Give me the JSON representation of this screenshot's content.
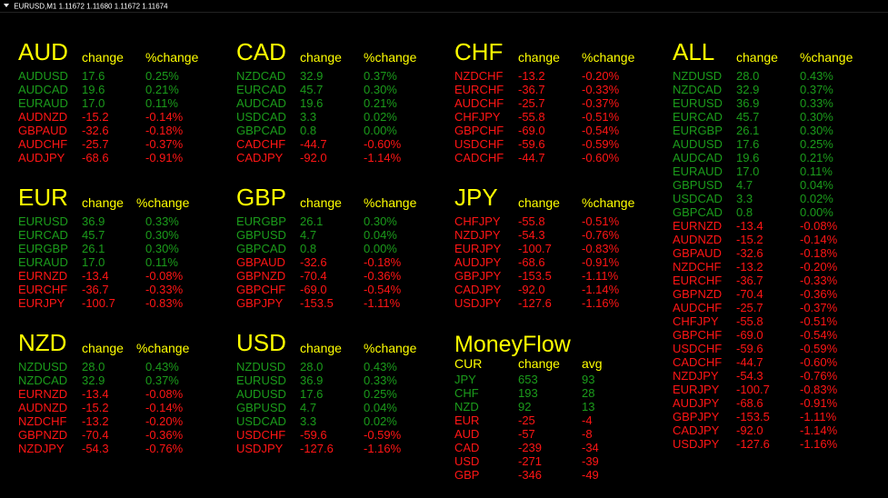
{
  "title_bar": {
    "symbol": "EURUSD,M1",
    "prices": "1.11672 1.11680 1.11672 1.11674"
  },
  "colors": {
    "background": "#000000",
    "heading": "#ffff00",
    "positive": "#1b9c1b",
    "negative": "#ff1515"
  },
  "headers": {
    "change": "change",
    "pct_change": "%change"
  },
  "panels": [
    {
      "currency": "AUD",
      "rows": [
        {
          "pair": "AUDUSD",
          "change": "17.6",
          "pct": "0.25%",
          "up": true
        },
        {
          "pair": "AUDCAD",
          "change": "19.6",
          "pct": "0.21%",
          "up": true
        },
        {
          "pair": "EURAUD",
          "change": "17.0",
          "pct": "0.11%",
          "up": true
        },
        {
          "pair": "AUDNZD",
          "change": "-15.2",
          "pct": "-0.14%",
          "up": false
        },
        {
          "pair": "GBPAUD",
          "change": "-32.6",
          "pct": "-0.18%",
          "up": false
        },
        {
          "pair": "AUDCHF",
          "change": "-25.7",
          "pct": "-0.37%",
          "up": false
        },
        {
          "pair": "AUDJPY",
          "change": "-68.6",
          "pct": "-0.91%",
          "up": false
        }
      ]
    },
    {
      "currency": "CAD",
      "rows": [
        {
          "pair": "NZDCAD",
          "change": "32.9",
          "pct": "0.37%",
          "up": true
        },
        {
          "pair": "EURCAD",
          "change": "45.7",
          "pct": "0.30%",
          "up": true
        },
        {
          "pair": "AUDCAD",
          "change": "19.6",
          "pct": "0.21%",
          "up": true
        },
        {
          "pair": "USDCAD",
          "change": "3.3",
          "pct": "0.02%",
          "up": true
        },
        {
          "pair": "GBPCAD",
          "change": "0.8",
          "pct": "0.00%",
          "up": true
        },
        {
          "pair": "CADCHF",
          "change": "-44.7",
          "pct": "-0.60%",
          "up": false
        },
        {
          "pair": "CADJPY",
          "change": "-92.0",
          "pct": "-1.14%",
          "up": false
        }
      ]
    },
    {
      "currency": "CHF",
      "rows": [
        {
          "pair": "NZDCHF",
          "change": "-13.2",
          "pct": "-0.20%",
          "up": false
        },
        {
          "pair": "EURCHF",
          "change": "-36.7",
          "pct": "-0.33%",
          "up": false
        },
        {
          "pair": "AUDCHF",
          "change": "-25.7",
          "pct": "-0.37%",
          "up": false
        },
        {
          "pair": "CHFJPY",
          "change": "-55.8",
          "pct": "-0.51%",
          "up": false
        },
        {
          "pair": "GBPCHF",
          "change": "-69.0",
          "pct": "-0.54%",
          "up": false
        },
        {
          "pair": "USDCHF",
          "change": "-59.6",
          "pct": "-0.59%",
          "up": false
        },
        {
          "pair": "CADCHF",
          "change": "-44.7",
          "pct": "-0.60%",
          "up": false
        }
      ]
    },
    {
      "currency": "EUR",
      "rows": [
        {
          "pair": "EURUSD",
          "change": "36.9",
          "pct": "0.33%",
          "up": true
        },
        {
          "pair": "EURCAD",
          "change": "45.7",
          "pct": "0.30%",
          "up": true
        },
        {
          "pair": "EURGBP",
          "change": "26.1",
          "pct": "0.30%",
          "up": true
        },
        {
          "pair": "EURAUD",
          "change": "17.0",
          "pct": "0.11%",
          "up": true
        },
        {
          "pair": "EURNZD",
          "change": "-13.4",
          "pct": "-0.08%",
          "up": false
        },
        {
          "pair": "EURCHF",
          "change": "-36.7",
          "pct": "-0.33%",
          "up": false
        },
        {
          "pair": "EURJPY",
          "change": "-100.7",
          "pct": "-0.83%",
          "up": false
        }
      ]
    },
    {
      "currency": "GBP",
      "rows": [
        {
          "pair": "EURGBP",
          "change": "26.1",
          "pct": "0.30%",
          "up": true
        },
        {
          "pair": "GBPUSD",
          "change": "4.7",
          "pct": "0.04%",
          "up": true
        },
        {
          "pair": "GBPCAD",
          "change": "0.8",
          "pct": "0.00%",
          "up": true
        },
        {
          "pair": "GBPAUD",
          "change": "-32.6",
          "pct": "-0.18%",
          "up": false
        },
        {
          "pair": "GBPNZD",
          "change": "-70.4",
          "pct": "-0.36%",
          "up": false
        },
        {
          "pair": "GBPCHF",
          "change": "-69.0",
          "pct": "-0.54%",
          "up": false
        },
        {
          "pair": "GBPJPY",
          "change": "-153.5",
          "pct": "-1.11%",
          "up": false
        }
      ]
    },
    {
      "currency": "JPY",
      "rows": [
        {
          "pair": "CHFJPY",
          "change": "-55.8",
          "pct": "-0.51%",
          "up": false
        },
        {
          "pair": "NZDJPY",
          "change": "-54.3",
          "pct": "-0.76%",
          "up": false
        },
        {
          "pair": "EURJPY",
          "change": "-100.7",
          "pct": "-0.83%",
          "up": false
        },
        {
          "pair": "AUDJPY",
          "change": "-68.6",
          "pct": "-0.91%",
          "up": false
        },
        {
          "pair": "GBPJPY",
          "change": "-153.5",
          "pct": "-1.11%",
          "up": false
        },
        {
          "pair": "CADJPY",
          "change": "-92.0",
          "pct": "-1.14%",
          "up": false
        },
        {
          "pair": "USDJPY",
          "change": "-127.6",
          "pct": "-1.16%",
          "up": false
        }
      ]
    },
    {
      "currency": "NZD",
      "rows": [
        {
          "pair": "NZDUSD",
          "change": "28.0",
          "pct": "0.43%",
          "up": true
        },
        {
          "pair": "NZDCAD",
          "change": "32.9",
          "pct": "0.37%",
          "up": true
        },
        {
          "pair": "EURNZD",
          "change": "-13.4",
          "pct": "-0.08%",
          "up": false
        },
        {
          "pair": "AUDNZD",
          "change": "-15.2",
          "pct": "-0.14%",
          "up": false
        },
        {
          "pair": "NZDCHF",
          "change": "-13.2",
          "pct": "-0.20%",
          "up": false
        },
        {
          "pair": "GBPNZD",
          "change": "-70.4",
          "pct": "-0.36%",
          "up": false
        },
        {
          "pair": "NZDJPY",
          "change": "-54.3",
          "pct": "-0.76%",
          "up": false
        }
      ]
    },
    {
      "currency": "USD",
      "rows": [
        {
          "pair": "NZDUSD",
          "change": "28.0",
          "pct": "0.43%",
          "up": true
        },
        {
          "pair": "EURUSD",
          "change": "36.9",
          "pct": "0.33%",
          "up": true
        },
        {
          "pair": "AUDUSD",
          "change": "17.6",
          "pct": "0.25%",
          "up": true
        },
        {
          "pair": "GBPUSD",
          "change": "4.7",
          "pct": "0.04%",
          "up": true
        },
        {
          "pair": "USDCAD",
          "change": "3.3",
          "pct": "0.02%",
          "up": true
        },
        {
          "pair": "USDCHF",
          "change": "-59.6",
          "pct": "-0.59%",
          "up": false
        },
        {
          "pair": "USDJPY",
          "change": "-127.6",
          "pct": "-1.16%",
          "up": false
        }
      ]
    },
    {
      "currency": "ALL",
      "rows": [
        {
          "pair": "NZDUSD",
          "change": "28.0",
          "pct": "0.43%",
          "up": true
        },
        {
          "pair": "NZDCAD",
          "change": "32.9",
          "pct": "0.37%",
          "up": true
        },
        {
          "pair": "EURUSD",
          "change": "36.9",
          "pct": "0.33%",
          "up": true
        },
        {
          "pair": "EURCAD",
          "change": "45.7",
          "pct": "0.30%",
          "up": true
        },
        {
          "pair": "EURGBP",
          "change": "26.1",
          "pct": "0.30%",
          "up": true
        },
        {
          "pair": "AUDUSD",
          "change": "17.6",
          "pct": "0.25%",
          "up": true
        },
        {
          "pair": "AUDCAD",
          "change": "19.6",
          "pct": "0.21%",
          "up": true
        },
        {
          "pair": "EURAUD",
          "change": "17.0",
          "pct": "0.11%",
          "up": true
        },
        {
          "pair": "GBPUSD",
          "change": "4.7",
          "pct": "0.04%",
          "up": true
        },
        {
          "pair": "USDCAD",
          "change": "3.3",
          "pct": "0.02%",
          "up": true
        },
        {
          "pair": "GBPCAD",
          "change": "0.8",
          "pct": "0.00%",
          "up": true
        },
        {
          "pair": "EURNZD",
          "change": "-13.4",
          "pct": "-0.08%",
          "up": false
        },
        {
          "pair": "AUDNZD",
          "change": "-15.2",
          "pct": "-0.14%",
          "up": false
        },
        {
          "pair": "GBPAUD",
          "change": "-32.6",
          "pct": "-0.18%",
          "up": false
        },
        {
          "pair": "NZDCHF",
          "change": "-13.2",
          "pct": "-0.20%",
          "up": false
        },
        {
          "pair": "EURCHF",
          "change": "-36.7",
          "pct": "-0.33%",
          "up": false
        },
        {
          "pair": "GBPNZD",
          "change": "-70.4",
          "pct": "-0.36%",
          "up": false
        },
        {
          "pair": "AUDCHF",
          "change": "-25.7",
          "pct": "-0.37%",
          "up": false
        },
        {
          "pair": "CHFJPY",
          "change": "-55.8",
          "pct": "-0.51%",
          "up": false
        },
        {
          "pair": "GBPCHF",
          "change": "-69.0",
          "pct": "-0.54%",
          "up": false
        },
        {
          "pair": "USDCHF",
          "change": "-59.6",
          "pct": "-0.59%",
          "up": false
        },
        {
          "pair": "CADCHF",
          "change": "-44.7",
          "pct": "-0.60%",
          "up": false
        },
        {
          "pair": "NZDJPY",
          "change": "-54.3",
          "pct": "-0.76%",
          "up": false
        },
        {
          "pair": "EURJPY",
          "change": "-100.7",
          "pct": "-0.83%",
          "up": false
        },
        {
          "pair": "AUDJPY",
          "change": "-68.6",
          "pct": "-0.91%",
          "up": false
        },
        {
          "pair": "GBPJPY",
          "change": "-153.5",
          "pct": "-1.11%",
          "up": false
        },
        {
          "pair": "CADJPY",
          "change": "-92.0",
          "pct": "-1.14%",
          "up": false
        },
        {
          "pair": "USDJPY",
          "change": "-127.6",
          "pct": "-1.16%",
          "up": false
        }
      ]
    }
  ],
  "moneyflow": {
    "title": "MoneyFlow",
    "headers": {
      "cur": "CUR",
      "change": "change",
      "avg": "avg"
    },
    "rows": [
      {
        "cur": "JPY",
        "change": "653",
        "avg": "93",
        "up": true
      },
      {
        "cur": "CHF",
        "change": "193",
        "avg": "28",
        "up": true
      },
      {
        "cur": "NZD",
        "change": "92",
        "avg": "13",
        "up": true
      },
      {
        "cur": "EUR",
        "change": "-25",
        "avg": "-4",
        "up": false
      },
      {
        "cur": "AUD",
        "change": "-57",
        "avg": "-8",
        "up": false
      },
      {
        "cur": "CAD",
        "change": "-239",
        "avg": "-34",
        "up": false
      },
      {
        "cur": "USD",
        "change": "-271",
        "avg": "-39",
        "up": false
      },
      {
        "cur": "GBP",
        "change": "-346",
        "avg": "-49",
        "up": false
      }
    ]
  }
}
